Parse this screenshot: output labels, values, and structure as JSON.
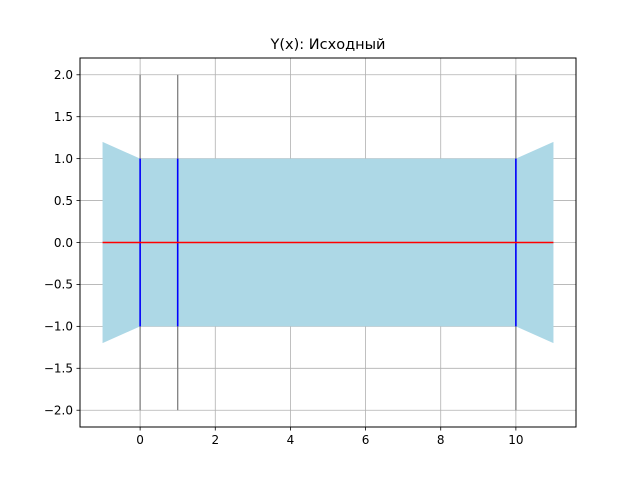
{
  "chart_data": {
    "type": "area",
    "title": "Y(x): Исходный",
    "xlabel": "",
    "ylabel": "",
    "xlim": [
      -1.6,
      11.6
    ],
    "ylim": [
      -2.2,
      2.2
    ],
    "xticks": [
      0,
      2,
      4,
      6,
      8,
      10
    ],
    "yticks": [
      -2.0,
      -1.5,
      -1.0,
      -0.5,
      0.0,
      0.5,
      1.0,
      1.5,
      2.0
    ],
    "grid": true,
    "band": {
      "color": "#add8e6",
      "x": [
        -1,
        0,
        1,
        10,
        11
      ],
      "upper": [
        1.2,
        1.0,
        1.0,
        1.0,
        1.2
      ],
      "lower": [
        -1.2,
        -1.0,
        -1.0,
        -1.0,
        -1.2
      ]
    },
    "series": [
      {
        "color": "#ff0000",
        "x": [
          -1,
          11
        ],
        "y": [
          0,
          0
        ]
      }
    ],
    "vertical_segments": [
      {
        "x": 0,
        "y": [
          -2,
          2
        ],
        "color": "#808080"
      },
      {
        "x": 1,
        "y": [
          -2,
          2
        ],
        "color": "#808080"
      },
      {
        "x": 10,
        "y": [
          -2,
          2
        ],
        "color": "#808080"
      },
      {
        "x": 0,
        "y": [
          -1,
          1
        ],
        "color": "#0000ff"
      },
      {
        "x": 1,
        "y": [
          -1,
          1
        ],
        "color": "#0000ff"
      },
      {
        "x": 10,
        "y": [
          -1,
          1
        ],
        "color": "#0000ff"
      }
    ]
  }
}
